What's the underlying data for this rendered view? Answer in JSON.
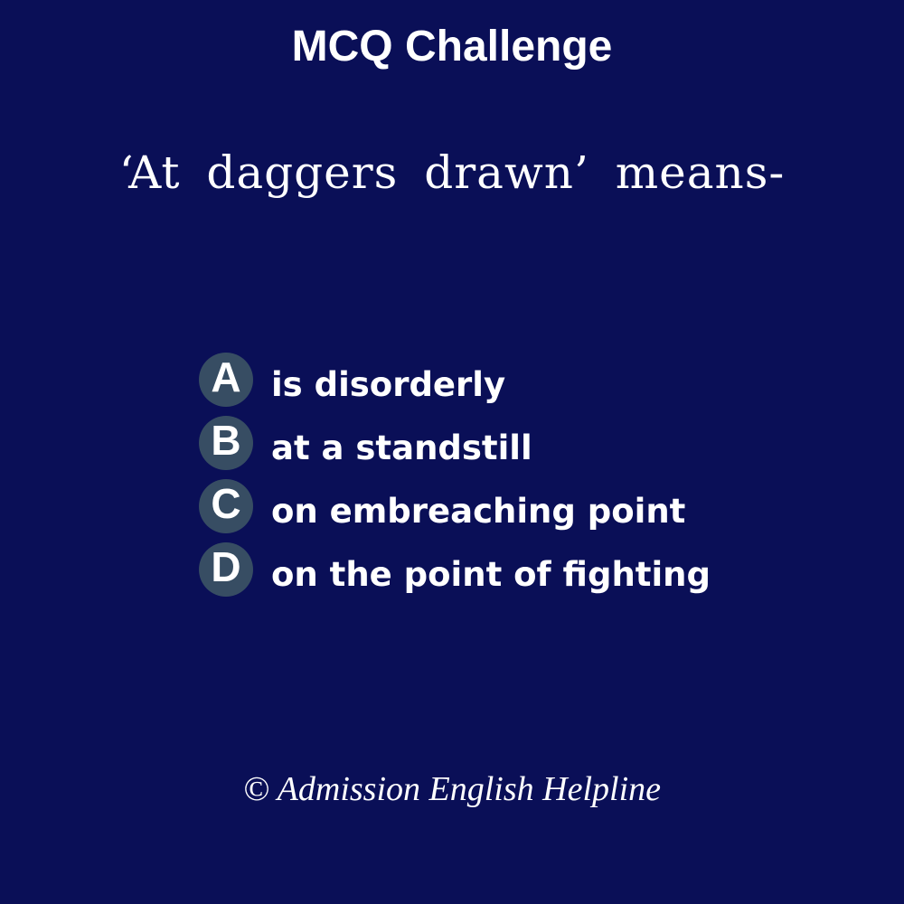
{
  "header": {
    "title": "MCQ Challenge"
  },
  "question": {
    "text": "‘At daggers drawn’ means-"
  },
  "options": [
    {
      "letter": "A",
      "text": "is disorderly"
    },
    {
      "letter": "B",
      "text": "at a standstill"
    },
    {
      "letter": "C",
      "text": "on embreaching point"
    },
    {
      "letter": "D",
      "text": "on the point of fighting"
    }
  ],
  "footer": {
    "copyright": "© Admission English Helpline"
  },
  "colors": {
    "background": "#0a0f57",
    "badge": "#374d63",
    "text": "#ffffff"
  }
}
